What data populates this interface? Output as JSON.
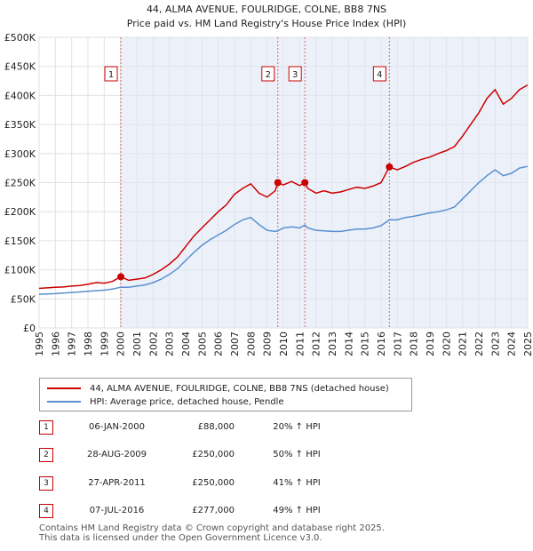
{
  "chart_data": {
    "type": "line",
    "title": "44, ALMA AVENUE, FOULRIDGE, COLNE, BB8 7NS",
    "subtitle": "Price paid vs. HM Land Registry's House Price Index (HPI)",
    "xlim": [
      1995,
      2025
    ],
    "ylim": [
      0,
      500000
    ],
    "y_ticks": [
      0,
      50000,
      100000,
      150000,
      200000,
      250000,
      300000,
      350000,
      400000,
      450000,
      500000
    ],
    "y_tick_labels": [
      "£0",
      "£50K",
      "£100K",
      "£150K",
      "£200K",
      "£250K",
      "£300K",
      "£350K",
      "£400K",
      "£450K",
      "£500K"
    ],
    "x_ticks": [
      1995,
      1996,
      1997,
      1998,
      1999,
      2000,
      2001,
      2002,
      2003,
      2004,
      2005,
      2006,
      2007,
      2008,
      2009,
      2010,
      2011,
      2012,
      2013,
      2014,
      2015,
      2016,
      2017,
      2018,
      2019,
      2020,
      2021,
      2022,
      2023,
      2024,
      2025
    ],
    "x_tick_labels": [
      "1995",
      "1996",
      "1997",
      "1998",
      "1999",
      "2000",
      "2001",
      "2002",
      "2003",
      "2004",
      "2005",
      "2006",
      "2007",
      "2008",
      "2009",
      "2010",
      "2011",
      "2012",
      "2013",
      "2014",
      "2015",
      "2016",
      "2017",
      "2018",
      "2019",
      "2020",
      "2021",
      "2022",
      "2023",
      "2024",
      "2025"
    ],
    "series": [
      {
        "name": "44, ALMA AVENUE, FOULRIDGE, COLNE, BB8 7NS (detached house)",
        "color": "#cc0000",
        "points": [
          [
            1995.0,
            68000
          ],
          [
            1995.5,
            69000
          ],
          [
            1996.0,
            70000
          ],
          [
            1996.5,
            70500
          ],
          [
            1997.0,
            72000
          ],
          [
            1997.5,
            73000
          ],
          [
            1998.0,
            75000
          ],
          [
            1998.5,
            78000
          ],
          [
            1999.0,
            77000
          ],
          [
            1999.5,
            80000
          ],
          [
            2000.02,
            88000
          ],
          [
            2000.5,
            82000
          ],
          [
            2001.0,
            84000
          ],
          [
            2001.5,
            86000
          ],
          [
            2002.0,
            92000
          ],
          [
            2002.5,
            100000
          ],
          [
            2003.0,
            110000
          ],
          [
            2003.5,
            122000
          ],
          [
            2004.0,
            140000
          ],
          [
            2004.5,
            158000
          ],
          [
            2005.0,
            172000
          ],
          [
            2005.5,
            186000
          ],
          [
            2006.0,
            200000
          ],
          [
            2006.5,
            212000
          ],
          [
            2007.0,
            230000
          ],
          [
            2007.5,
            240000
          ],
          [
            2008.0,
            248000
          ],
          [
            2008.5,
            232000
          ],
          [
            2009.0,
            225000
          ],
          [
            2009.5,
            236000
          ],
          [
            2009.66,
            250000
          ],
          [
            2010.0,
            246000
          ],
          [
            2010.5,
            252000
          ],
          [
            2011.0,
            245000
          ],
          [
            2011.32,
            250000
          ],
          [
            2011.5,
            240000
          ],
          [
            2012.0,
            232000
          ],
          [
            2012.5,
            236000
          ],
          [
            2013.0,
            232000
          ],
          [
            2013.5,
            234000
          ],
          [
            2014.0,
            238000
          ],
          [
            2014.5,
            242000
          ],
          [
            2015.0,
            240000
          ],
          [
            2015.5,
            244000
          ],
          [
            2016.0,
            250000
          ],
          [
            2016.51,
            277000
          ],
          [
            2017.0,
            272000
          ],
          [
            2017.5,
            278000
          ],
          [
            2018.0,
            285000
          ],
          [
            2018.5,
            290000
          ],
          [
            2019.0,
            294000
          ],
          [
            2019.5,
            300000
          ],
          [
            2020.0,
            305000
          ],
          [
            2020.5,
            312000
          ],
          [
            2021.0,
            330000
          ],
          [
            2021.5,
            350000
          ],
          [
            2022.0,
            370000
          ],
          [
            2022.5,
            395000
          ],
          [
            2023.0,
            410000
          ],
          [
            2023.5,
            385000
          ],
          [
            2024.0,
            395000
          ],
          [
            2024.5,
            410000
          ],
          [
            2025.0,
            418000
          ]
        ]
      },
      {
        "name": "HPI: Average price, detached house, Pendle",
        "color": "#5b8fd0",
        "points": [
          [
            1995.0,
            58000
          ],
          [
            1995.5,
            58500
          ],
          [
            1996.0,
            59000
          ],
          [
            1996.5,
            60000
          ],
          [
            1997.0,
            61000
          ],
          [
            1997.5,
            62000
          ],
          [
            1998.0,
            63000
          ],
          [
            1998.5,
            64000
          ],
          [
            1999.0,
            65000
          ],
          [
            1999.5,
            67000
          ],
          [
            2000.02,
            70000
          ],
          [
            2000.5,
            70000
          ],
          [
            2001.0,
            72000
          ],
          [
            2001.5,
            74000
          ],
          [
            2002.0,
            78000
          ],
          [
            2002.5,
            84000
          ],
          [
            2003.0,
            92000
          ],
          [
            2003.5,
            102000
          ],
          [
            2004.0,
            116000
          ],
          [
            2004.5,
            130000
          ],
          [
            2005.0,
            142000
          ],
          [
            2005.5,
            152000
          ],
          [
            2006.0,
            160000
          ],
          [
            2006.5,
            168000
          ],
          [
            2007.0,
            178000
          ],
          [
            2007.5,
            186000
          ],
          [
            2008.0,
            190000
          ],
          [
            2008.5,
            178000
          ],
          [
            2009.0,
            168000
          ],
          [
            2009.5,
            166000
          ],
          [
            2009.66,
            167000
          ],
          [
            2010.0,
            172000
          ],
          [
            2010.5,
            174000
          ],
          [
            2011.0,
            172000
          ],
          [
            2011.32,
            177000
          ],
          [
            2011.5,
            172000
          ],
          [
            2012.0,
            168000
          ],
          [
            2012.5,
            167000
          ],
          [
            2013.0,
            166000
          ],
          [
            2013.5,
            166000
          ],
          [
            2014.0,
            168000
          ],
          [
            2014.5,
            170000
          ],
          [
            2015.0,
            170000
          ],
          [
            2015.5,
            172000
          ],
          [
            2016.0,
            176000
          ],
          [
            2016.51,
            186000
          ],
          [
            2017.0,
            186000
          ],
          [
            2017.5,
            190000
          ],
          [
            2018.0,
            192000
          ],
          [
            2018.5,
            195000
          ],
          [
            2019.0,
            198000
          ],
          [
            2019.5,
            200000
          ],
          [
            2020.0,
            203000
          ],
          [
            2020.5,
            208000
          ],
          [
            2021.0,
            222000
          ],
          [
            2021.5,
            236000
          ],
          [
            2022.0,
            250000
          ],
          [
            2022.5,
            262000
          ],
          [
            2023.0,
            272000
          ],
          [
            2023.5,
            262000
          ],
          [
            2024.0,
            266000
          ],
          [
            2024.5,
            275000
          ],
          [
            2025.0,
            278000
          ]
        ]
      }
    ],
    "sales": [
      {
        "label": "1",
        "x": 2000.02,
        "y": 88000
      },
      {
        "label": "2",
        "x": 2009.66,
        "y": 250000
      },
      {
        "label": "3",
        "x": 2011.32,
        "y": 250000
      },
      {
        "label": "4",
        "x": 2016.51,
        "y": 277000
      }
    ],
    "grid": true,
    "legend_placement": "bottom"
  },
  "legend": {
    "property_label": "44, ALMA AVENUE, FOULRIDGE, COLNE, BB8 7NS (detached house)",
    "hpi_label": "HPI: Average price, detached house, Pendle",
    "property_color": "#cc0000",
    "hpi_color": "#5b8fd0"
  },
  "transactions": [
    {
      "num": "1",
      "date": "06-JAN-2000",
      "price": "£88,000",
      "hpi": "20% ↑ HPI"
    },
    {
      "num": "2",
      "date": "28-AUG-2009",
      "price": "£250,000",
      "hpi": "50% ↑ HPI"
    },
    {
      "num": "3",
      "date": "27-APR-2011",
      "price": "£250,000",
      "hpi": "41% ↑ HPI"
    },
    {
      "num": "4",
      "date": "07-JUL-2016",
      "price": "£277,000",
      "hpi": "49% ↑ HPI"
    }
  ],
  "footer": {
    "line1": "Contains HM Land Registry data © Crown copyright and database right 2025.",
    "line2": "This data is licensed under the Open Government Licence v3.0."
  }
}
